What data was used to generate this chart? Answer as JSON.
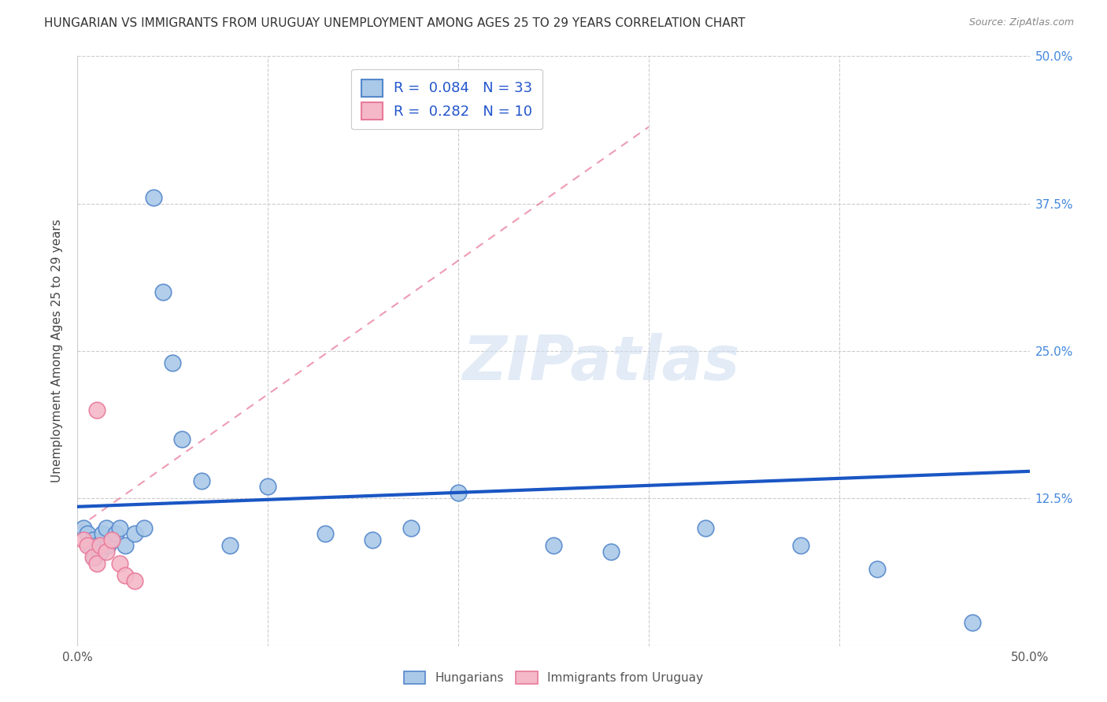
{
  "title": "HUNGARIAN VS IMMIGRANTS FROM URUGUAY UNEMPLOYMENT AMONG AGES 25 TO 29 YEARS CORRELATION CHART",
  "source": "Source: ZipAtlas.com",
  "ylabel": "Unemployment Among Ages 25 to 29 years",
  "xlim": [
    0,
    0.5
  ],
  "ylim": [
    0,
    0.5
  ],
  "xtick_positions": [
    0.0,
    0.5
  ],
  "xtick_labels": [
    "0.0%",
    "50.0%"
  ],
  "ytick_positions": [
    0.125,
    0.25,
    0.375,
    0.5
  ],
  "ytick_labels": [
    "12.5%",
    "25.0%",
    "37.5%",
    "50.0%"
  ],
  "legend_labels": [
    "Hungarians",
    "Immigrants from Uruguay"
  ],
  "blue_R": "0.084",
  "blue_N": "33",
  "pink_R": "0.282",
  "pink_N": "10",
  "blue_color": "#aac9e8",
  "blue_edge_color": "#5588cc",
  "blue_line_color": "#1a56c4",
  "pink_color": "#f4b8c8",
  "pink_edge_color": "#e87a9a",
  "pink_line_color": "#e87a9a",
  "grid_color": "#cccccc",
  "watermark": "ZIPatlas",
  "blue_line_x0": 0.0,
  "blue_line_x1": 0.5,
  "blue_line_y0": 0.118,
  "blue_line_y1": 0.148,
  "pink_line_x0": 0.0,
  "pink_line_x1": 0.3,
  "pink_line_y0": 0.1,
  "pink_line_y1": 0.44,
  "blue_x": [
    0.003,
    0.005,
    0.007,
    0.008,
    0.009,
    0.01,
    0.012,
    0.013,
    0.015,
    0.016,
    0.018,
    0.02,
    0.022,
    0.025,
    0.03,
    0.035,
    0.04,
    0.045,
    0.05,
    0.055,
    0.065,
    0.08,
    0.1,
    0.13,
    0.155,
    0.175,
    0.2,
    0.25,
    0.28,
    0.33,
    0.38,
    0.42,
    0.47
  ],
  "blue_y": [
    0.1,
    0.095,
    0.085,
    0.09,
    0.075,
    0.085,
    0.08,
    0.095,
    0.1,
    0.085,
    0.09,
    0.095,
    0.1,
    0.085,
    0.095,
    0.1,
    0.38,
    0.3,
    0.24,
    0.175,
    0.14,
    0.085,
    0.135,
    0.095,
    0.09,
    0.1,
    0.13,
    0.085,
    0.08,
    0.1,
    0.085,
    0.065,
    0.02
  ],
  "pink_x": [
    0.003,
    0.005,
    0.008,
    0.01,
    0.012,
    0.015,
    0.018,
    0.022,
    0.025,
    0.03
  ],
  "pink_y": [
    0.09,
    0.085,
    0.075,
    0.07,
    0.085,
    0.08,
    0.09,
    0.07,
    0.06,
    0.055
  ]
}
